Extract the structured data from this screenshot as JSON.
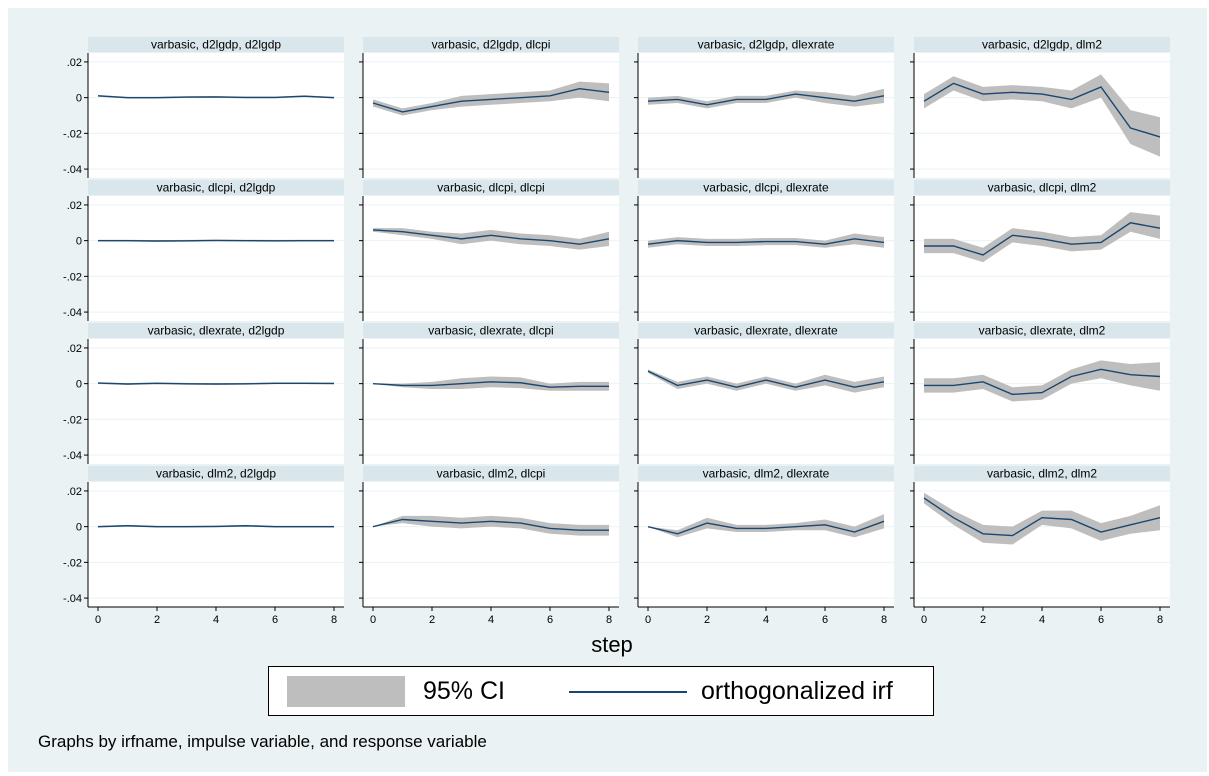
{
  "chart_data": {
    "type": "line",
    "layout": "4x4 facet grid",
    "x": [
      0,
      1,
      2,
      3,
      4,
      5,
      6,
      7,
      8
    ],
    "xlabel": "step",
    "x_ticks": [
      0,
      2,
      4,
      6,
      8
    ],
    "xlim": [
      0,
      8
    ],
    "ylim": [
      -0.045,
      0.025
    ],
    "y_ticks": [
      0.02,
      0,
      -0.02,
      -0.04
    ],
    "y_tick_labels": [
      ".02",
      "0",
      "-.02",
      "-.04"
    ],
    "grid": "horizontal",
    "legend": {
      "placement": "bottom",
      "ci_label": "95% CI",
      "irf_label": "orthogonalized irf"
    },
    "note": "Graphs by irfname, impulse variable, and response variable",
    "colors": {
      "background": "#eaf2f3",
      "plot_area": "#ffffff",
      "panel_title_bg": "#d9e6eb",
      "ci_band": "#bebebe",
      "irf_line": "#1a476f",
      "grid": "#eaf2f3"
    },
    "panels": [
      {
        "title": "varbasic, d2lgdp, d2lgdp",
        "irf": [
          0.001,
          0.0,
          0.0,
          0.0003,
          0.0004,
          0.0001,
          0.0001,
          0.0008,
          0.0
        ],
        "lower": [
          0.0005,
          -0.0005,
          -0.0005,
          -0.0002,
          -0.0001,
          -0.0004,
          -0.0004,
          0.0003,
          -0.0005
        ],
        "upper": [
          0.0015,
          0.0005,
          0.0005,
          0.0008,
          0.0009,
          0.0006,
          0.0006,
          0.0013,
          0.0005
        ]
      },
      {
        "title": "varbasic, d2lgdp, dlcpi",
        "irf": [
          -0.003,
          -0.008,
          -0.005,
          -0.002,
          -0.001,
          0.0,
          0.001,
          0.005,
          0.003
        ],
        "lower": [
          -0.005,
          -0.01,
          -0.007,
          -0.005,
          -0.004,
          -0.003,
          -0.002,
          0.0,
          -0.002
        ],
        "upper": [
          -0.001,
          -0.006,
          -0.003,
          0.001,
          0.002,
          0.003,
          0.004,
          0.009,
          0.008
        ]
      },
      {
        "title": "varbasic, d2lgdp, dlexrate",
        "irf": [
          -0.002,
          -0.001,
          -0.004,
          -0.001,
          -0.001,
          0.002,
          0.0,
          -0.002,
          0.001
        ],
        "lower": [
          -0.004,
          -0.003,
          -0.006,
          -0.003,
          -0.003,
          0.0,
          -0.003,
          -0.005,
          -0.003
        ],
        "upper": [
          0.0,
          0.001,
          -0.002,
          0.001,
          0.001,
          0.004,
          0.003,
          0.001,
          0.005
        ]
      },
      {
        "title": "varbasic, d2lgdp, dlm2",
        "irf": [
          -0.002,
          0.008,
          0.002,
          0.003,
          0.002,
          -0.001,
          0.006,
          -0.017,
          -0.022
        ],
        "lower": [
          -0.006,
          0.004,
          -0.002,
          -0.001,
          -0.002,
          -0.006,
          0.0,
          -0.026,
          -0.033
        ],
        "upper": [
          0.002,
          0.012,
          0.006,
          0.007,
          0.006,
          0.004,
          0.013,
          -0.007,
          -0.011
        ]
      },
      {
        "title": "varbasic, dlcpi, d2lgdp",
        "irf": [
          0.0,
          0.0,
          -0.0002,
          -0.0001,
          0.0001,
          0.0,
          -0.0001,
          0.0,
          0.0
        ],
        "lower": [
          -0.0005,
          -0.0005,
          -0.0007,
          -0.0006,
          -0.0004,
          -0.0005,
          -0.0006,
          -0.0005,
          -0.0005
        ],
        "upper": [
          0.0005,
          0.0005,
          0.0003,
          0.0004,
          0.0006,
          0.0005,
          0.0004,
          0.0005,
          0.0005
        ]
      },
      {
        "title": "varbasic, dlcpi, dlcpi",
        "irf": [
          0.006,
          0.005,
          0.003,
          0.001,
          0.003,
          0.001,
          0.0,
          -0.002,
          0.001
        ],
        "lower": [
          0.005,
          0.003,
          0.001,
          -0.002,
          0.0,
          -0.002,
          -0.003,
          -0.005,
          -0.003
        ],
        "upper": [
          0.007,
          0.007,
          0.005,
          0.004,
          0.006,
          0.004,
          0.003,
          0.001,
          0.005
        ]
      },
      {
        "title": "varbasic, dlcpi, dlexrate",
        "irf": [
          -0.002,
          0.0,
          -0.001,
          -0.001,
          -0.0005,
          -0.0005,
          -0.002,
          0.001,
          -0.001
        ],
        "lower": [
          -0.004,
          -0.002,
          -0.003,
          -0.003,
          -0.0025,
          -0.0025,
          -0.004,
          -0.002,
          -0.004
        ],
        "upper": [
          0.0,
          0.002,
          0.001,
          0.001,
          0.0015,
          0.0015,
          0.0,
          0.004,
          0.002
        ]
      },
      {
        "title": "varbasic, dlcpi, dlm2",
        "irf": [
          -0.003,
          -0.003,
          -0.008,
          0.003,
          0.001,
          -0.002,
          -0.001,
          0.01,
          0.007
        ],
        "lower": [
          -0.007,
          -0.007,
          -0.012,
          -0.001,
          -0.003,
          -0.006,
          -0.005,
          0.005,
          0.001
        ],
        "upper": [
          0.001,
          0.001,
          -0.004,
          0.007,
          0.005,
          0.002,
          0.003,
          0.016,
          0.014
        ]
      },
      {
        "title": "varbasic, dlexrate, d2lgdp",
        "irf": [
          0.0003,
          -0.0002,
          0.0002,
          -0.0001,
          -0.0002,
          -0.0001,
          0.0002,
          0.0002,
          0.0001
        ],
        "lower": [
          -0.0002,
          -0.0007,
          -0.0003,
          -0.0006,
          -0.0007,
          -0.0006,
          -0.0003,
          -0.0003,
          -0.0004
        ],
        "upper": [
          0.0008,
          0.0003,
          0.0007,
          0.0004,
          0.0003,
          0.0004,
          0.0007,
          0.0007,
          0.0006
        ]
      },
      {
        "title": "varbasic, dlexrate, dlcpi",
        "irf": [
          0.0,
          -0.001,
          -0.001,
          0.0,
          0.001,
          0.0005,
          -0.002,
          -0.0015,
          -0.0015
        ],
        "lower": [
          0.0,
          -0.002,
          -0.003,
          -0.003,
          -0.002,
          -0.0025,
          -0.004,
          -0.004,
          -0.004
        ],
        "upper": [
          0.0,
          0.0,
          0.001,
          0.003,
          0.004,
          0.0035,
          0.0,
          0.001,
          0.001
        ]
      },
      {
        "title": "varbasic, dlexrate, dlexrate",
        "irf": [
          0.007,
          -0.001,
          0.002,
          -0.002,
          0.002,
          -0.002,
          0.002,
          -0.002,
          0.001
        ],
        "lower": [
          0.006,
          -0.003,
          0.0,
          -0.004,
          0.0,
          -0.004,
          -0.001,
          -0.005,
          -0.002
        ],
        "upper": [
          0.008,
          0.001,
          0.004,
          0.0,
          0.004,
          0.0,
          0.005,
          0.001,
          0.004
        ]
      },
      {
        "title": "varbasic, dlexrate, dlm2",
        "irf": [
          -0.001,
          -0.001,
          0.001,
          -0.006,
          -0.005,
          0.004,
          0.008,
          0.005,
          0.004
        ],
        "lower": [
          -0.005,
          -0.005,
          -0.003,
          -0.01,
          -0.009,
          0.0,
          0.003,
          -0.001,
          -0.004
        ],
        "upper": [
          0.003,
          0.003,
          0.005,
          -0.002,
          -0.001,
          0.008,
          0.013,
          0.011,
          0.012
        ]
      },
      {
        "title": "varbasic, dlm2, d2lgdp",
        "irf": [
          0.0,
          0.0005,
          0.0,
          0.0,
          0.0001,
          0.0005,
          0.0,
          0.0,
          0.0
        ],
        "lower": [
          -0.0005,
          0.0,
          -0.0005,
          -0.0005,
          -0.0004,
          0.0,
          -0.0005,
          -0.0005,
          -0.0005
        ],
        "upper": [
          0.0005,
          0.001,
          0.0005,
          0.0005,
          0.0006,
          0.001,
          0.0005,
          0.0005,
          0.0005
        ]
      },
      {
        "title": "varbasic, dlm2, dlcpi",
        "irf": [
          0.0,
          0.004,
          0.003,
          0.002,
          0.003,
          0.002,
          -0.001,
          -0.002,
          -0.002
        ],
        "lower": [
          0.0,
          0.002,
          0.0,
          -0.001,
          0.0,
          -0.001,
          -0.004,
          -0.005,
          -0.005
        ],
        "upper": [
          0.0,
          0.006,
          0.006,
          0.005,
          0.006,
          0.005,
          0.002,
          0.001,
          0.001
        ]
      },
      {
        "title": "varbasic, dlm2, dlexrate",
        "irf": [
          0.0,
          -0.004,
          0.002,
          -0.001,
          -0.001,
          0.0,
          0.001,
          -0.003,
          0.003
        ],
        "lower": [
          0.0,
          -0.006,
          -0.001,
          -0.003,
          -0.003,
          -0.002,
          -0.002,
          -0.006,
          -0.001
        ],
        "upper": [
          0.0,
          -0.002,
          0.005,
          0.001,
          0.001,
          0.002,
          0.004,
          0.0,
          0.007
        ]
      },
      {
        "title": "varbasic, dlm2, dlm2",
        "irf": [
          0.016,
          0.005,
          -0.004,
          -0.005,
          0.005,
          0.004,
          -0.003,
          0.001,
          0.005
        ],
        "lower": [
          0.013,
          0.001,
          -0.009,
          -0.01,
          0.001,
          -0.001,
          -0.008,
          -0.004,
          -0.002
        ],
        "upper": [
          0.019,
          0.009,
          0.001,
          0.0,
          0.009,
          0.009,
          0.002,
          0.006,
          0.012
        ]
      }
    ]
  }
}
